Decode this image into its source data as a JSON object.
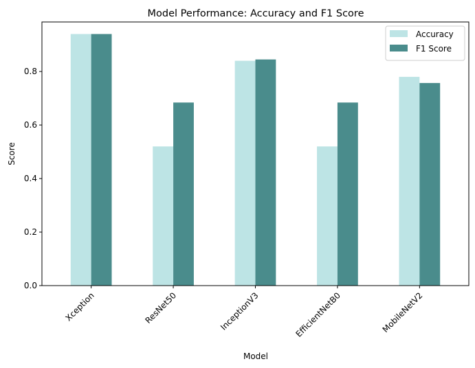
{
  "chart_data": {
    "type": "bar",
    "title": "Model Performance: Accuracy and F1 Score",
    "xlabel": "Model",
    "ylabel": "Score",
    "categories": [
      "Xception",
      "ResNet50",
      "InceptionV3",
      "EfficientNetB0",
      "MobileNetV2"
    ],
    "series": [
      {
        "name": "Accuracy",
        "color": "#bde4e5",
        "values": [
          0.94,
          0.52,
          0.84,
          0.52,
          0.78
        ]
      },
      {
        "name": "F1 Score",
        "color": "#4a8c8c",
        "values": [
          0.94,
          0.684,
          0.845,
          0.684,
          0.757
        ]
      }
    ],
    "ylim": [
      0,
      0.985
    ],
    "yticks": [
      0.0,
      0.2,
      0.4,
      0.6,
      0.8
    ],
    "ytick_labels": [
      "0.0",
      "0.2",
      "0.4",
      "0.6",
      "0.8"
    ],
    "grid": false,
    "legend_position": "top-right"
  }
}
